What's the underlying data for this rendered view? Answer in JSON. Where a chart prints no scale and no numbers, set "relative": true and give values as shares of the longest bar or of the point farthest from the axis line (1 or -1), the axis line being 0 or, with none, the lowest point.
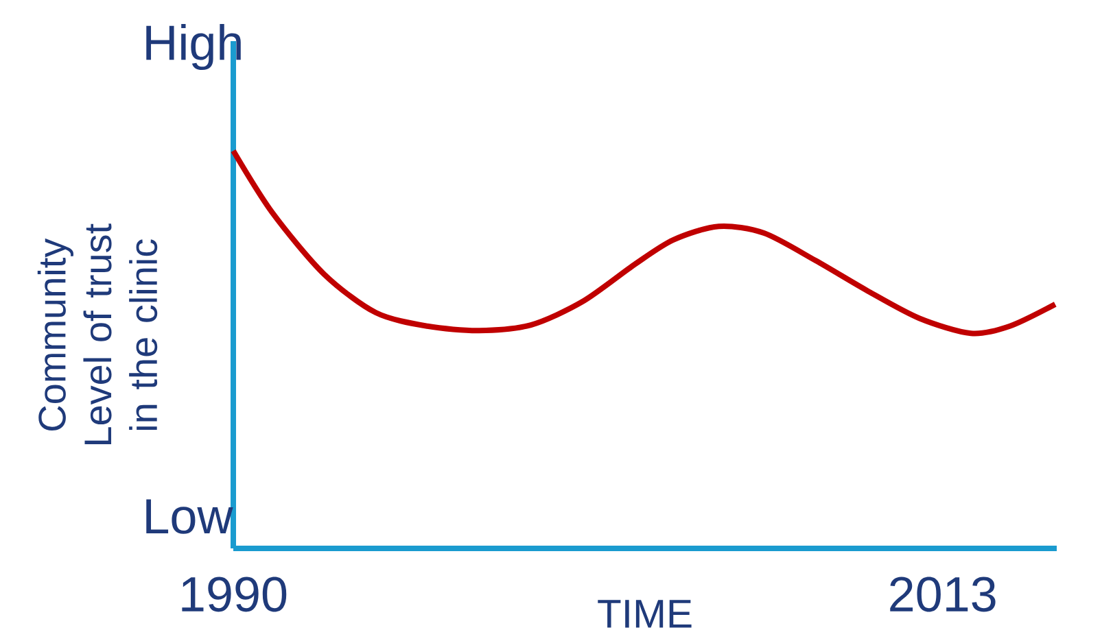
{
  "chart_data": {
    "type": "line",
    "relative": true,
    "xlabel": "TIME",
    "ylabel": "Community Level of trust in the clinic",
    "annotations": [
      "High",
      "Low"
    ],
    "x": [
      1990,
      1991.26,
      1992.94,
      1994.62,
      1996.29,
      1997.97,
      1999.65,
      2001.33,
      2003.01,
      2004.27,
      2005.74,
      2007.21,
      2008.88,
      2010.56,
      2012.24,
      2013.92,
      2015.18,
      2016.65
    ],
    "series": [
      {
        "color": "#c00000",
        "values": [
          1.0,
          0.845,
          0.69,
          0.593,
          0.559,
          0.548,
          0.562,
          0.621,
          0.714,
          0.776,
          0.81,
          0.793,
          0.724,
          0.648,
          0.579,
          0.541,
          0.559,
          0.614
        ]
      }
    ],
    "xlim": [
      1990,
      2016.7
    ],
    "xticks": [
      1990,
      2013
    ],
    "marker": "none",
    "line_style": "solid",
    "grid": false
  }
}
